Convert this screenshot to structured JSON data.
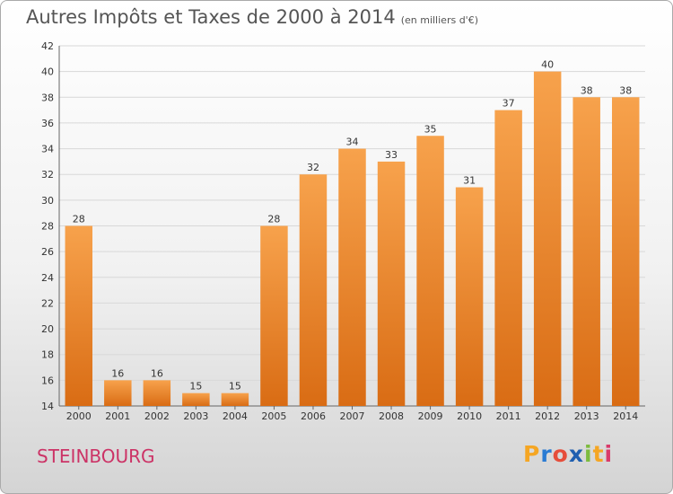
{
  "chart_data": {
    "type": "bar",
    "title": "Autres Impôts et Taxes de 2000 à 2014",
    "subtitle": "(en milliers d'€)",
    "categories": [
      "2000",
      "2001",
      "2002",
      "2003",
      "2004",
      "2005",
      "2006",
      "2007",
      "2008",
      "2009",
      "2010",
      "2011",
      "2012",
      "2013",
      "2014"
    ],
    "values": [
      28,
      16,
      16,
      15,
      15,
      28,
      32,
      34,
      33,
      35,
      31,
      37,
      40,
      38,
      38
    ],
    "ylim": [
      14,
      42
    ],
    "yticks": [
      14,
      16,
      18,
      20,
      22,
      24,
      26,
      28,
      30,
      32,
      34,
      36,
      38,
      40,
      42
    ],
    "grid": true,
    "legend": "none",
    "bar_color": "#f28c28"
  },
  "town": "STEINBOURG",
  "logo": {
    "letters": [
      "P",
      "r",
      "o",
      "x",
      "i",
      "t",
      "i"
    ],
    "colors": [
      "#f5a623",
      "#2a7bd3",
      "#e64e3b",
      "#1f5fb0",
      "#7dbb3f",
      "#f5a623",
      "#d93a6a"
    ]
  }
}
